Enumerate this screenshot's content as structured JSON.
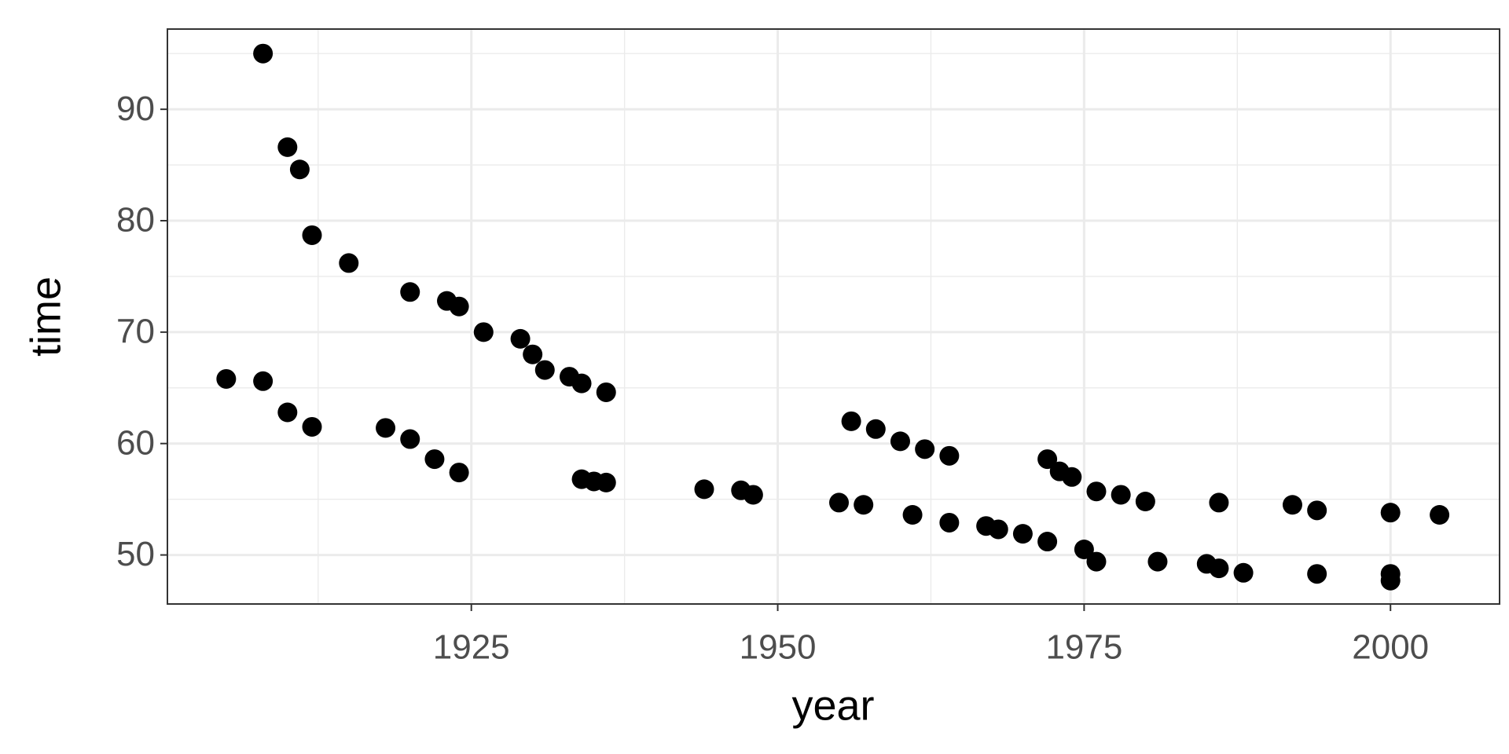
{
  "chart_data": {
    "type": "scatter",
    "x_label": "year",
    "y_label": "time",
    "x": [
      1908,
      1910,
      1911,
      1912,
      1915,
      1920,
      1923,
      1924,
      1926,
      1929,
      1930,
      1931,
      1933,
      1934,
      1936,
      1956,
      1958,
      1960,
      1962,
      1964,
      1972,
      1973,
      1974,
      1976,
      1978,
      1980,
      1986,
      1992,
      1994,
      2000,
      2004,
      1905,
      1908,
      1910,
      1912,
      1918,
      1920,
      1922,
      1924,
      1934,
      1935,
      1936,
      1944,
      1947,
      1948,
      1955,
      1957,
      1961,
      1964,
      1967,
      1968,
      1970,
      1972,
      1975,
      1976,
      1981,
      1985,
      1986,
      1988,
      1994,
      2000,
      2000
    ],
    "y": [
      95.0,
      86.6,
      84.6,
      78.7,
      76.2,
      73.6,
      72.8,
      72.3,
      70.0,
      69.4,
      68.0,
      66.6,
      66.0,
      65.4,
      64.6,
      62.0,
      61.3,
      60.2,
      59.5,
      58.9,
      58.6,
      57.5,
      57.0,
      55.7,
      55.4,
      54.8,
      54.7,
      54.5,
      54.0,
      53.8,
      53.6,
      65.8,
      65.6,
      62.8,
      61.5,
      61.4,
      60.4,
      58.6,
      57.4,
      56.8,
      56.6,
      56.5,
      55.9,
      55.8,
      55.4,
      54.7,
      54.5,
      53.6,
      52.9,
      52.6,
      52.3,
      51.9,
      51.2,
      50.5,
      49.4,
      49.4,
      49.2,
      48.8,
      48.4,
      48.3,
      48.3,
      47.7
    ],
    "color": "#000000",
    "xlim": [
      1900.2,
      2008.9
    ],
    "xticks": [
      1925,
      1950,
      1975,
      2000
    ],
    "ylim": [
      45.6,
      97.2
    ],
    "yticks": [
      50,
      60,
      70,
      80,
      90
    ],
    "grid": true
  }
}
